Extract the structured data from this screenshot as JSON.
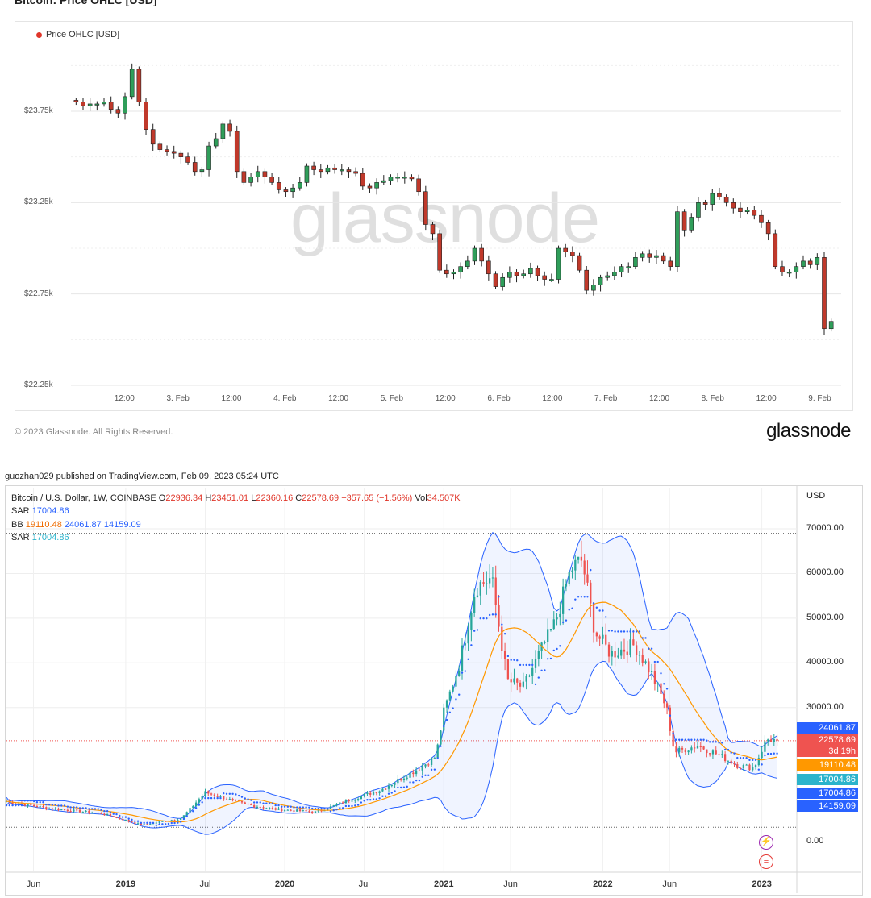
{
  "header": {
    "title": "Bitcoin: Price OHLC [USD]"
  },
  "glassnode": {
    "legend": "Price OHLC [USD]",
    "watermark": "glassnode",
    "copyright": "© 2023 Glassnode. All Rights Reserved.",
    "logo": "glassnode",
    "colors": {
      "up": "#2f9e5a",
      "down": "#c0392b",
      "legend_dot": "#e0362a"
    }
  },
  "tradingview": {
    "published": "guozhan029 published on TradingView.com, Feb 09, 2023 05:24 UTC",
    "symbol": "Bitcoin / U.S. Dollar, 1W, COINBASE",
    "o_label": "O",
    "o_value": "22936.34",
    "h_label": "H",
    "h_value": "23451.01",
    "l_label": "L",
    "l_value": "22360.16",
    "c_label": "C",
    "c_value": "22578.69",
    "change": "−357.65 (−1.56%)",
    "vol_label": "Vol",
    "vol_value": "34.507K",
    "sar1_label": "SAR",
    "sar1_value": "17004.86",
    "bb_label": "BB",
    "bb_mid": "19110.48",
    "bb_upper": "24061.87",
    "bb_lower": "14159.09",
    "sar2_label": "SAR",
    "sar2_value": "17004.86",
    "currency": "USD",
    "price_boxes": [
      "24061.87",
      "22578.69",
      "3d 19h",
      "19110.48",
      "17004.86",
      "17004.86",
      "14159.09"
    ],
    "icons": [
      "lightning-icon",
      "us-flag-icon"
    ],
    "colors": {
      "up": "#26a69a",
      "down": "#ef5350",
      "bb": "#2962ff",
      "basis": "#ff9800",
      "sar": "#2962ff"
    }
  },
  "chart_data": [
    {
      "type": "candlestick",
      "title": "Bitcoin: Price OHLC [USD]",
      "ylabel": "",
      "y_ticks": [
        "$22.25k",
        "$22.75k",
        "$23.25k",
        "$23.75k"
      ],
      "y_tick_values": [
        22250,
        22750,
        23250,
        23750
      ],
      "ylim": [
        22250,
        24050
      ],
      "x_ticks": [
        "12:00",
        "3. Feb",
        "12:00",
        "4. Feb",
        "12:00",
        "5. Feb",
        "12:00",
        "6. Feb",
        "12:00",
        "7. Feb",
        "12:00",
        "8. Feb",
        "12:00",
        "9. Feb"
      ],
      "x_tick_values": [
        0.5,
        1,
        1.5,
        2,
        2.5,
        3,
        3.5,
        4,
        4.5,
        5,
        5.5,
        6,
        6.5,
        7
      ],
      "xlim": [
        0.0,
        7.2
      ],
      "series_close": [
        23800,
        23780,
        23790,
        23790,
        23800,
        23760,
        23740,
        23830,
        23980,
        23800,
        23650,
        23570,
        23540,
        23530,
        23520,
        23500,
        23470,
        23420,
        23430,
        23560,
        23600,
        23680,
        23640,
        23420,
        23360,
        23390,
        23420,
        23390,
        23360,
        23320,
        23310,
        23330,
        23360,
        23450,
        23430,
        23420,
        23440,
        23430,
        23430,
        23420,
        23410,
        23340,
        23330,
        23360,
        23370,
        23390,
        23390,
        23390,
        23380,
        23310,
        23130,
        23080,
        22880,
        22860,
        22870,
        22900,
        22930,
        23000,
        22930,
        22860,
        22790,
        22840,
        22870,
        22850,
        22860,
        22890,
        22850,
        22830,
        22830,
        23000,
        22980,
        22960,
        22880,
        22770,
        22800,
        22840,
        22850,
        22870,
        22900,
        22900,
        22950,
        22970,
        22950,
        22960,
        22930,
        22900,
        23200,
        23100,
        23170,
        23250,
        23240,
        23300,
        23280,
        23250,
        23220,
        23200,
        23210,
        23180,
        23140,
        23080,
        22900,
        22870,
        22870,
        22900,
        22930,
        22910,
        22950,
        22560,
        22600
      ]
    },
    {
      "type": "candlestick",
      "title": "Bitcoin / U.S. Dollar, 1W, COINBASE",
      "ylabel": "USD",
      "y_ticks": [
        "0.00",
        "30000.00",
        "40000.00",
        "50000.00",
        "60000.00",
        "70000.00"
      ],
      "y_tick_values": [
        0,
        30000,
        40000,
        50000,
        60000,
        70000
      ],
      "ylim": [
        -6500,
        76500
      ],
      "x_ticks": [
        "Jun",
        "2019",
        "Jul",
        "2020",
        "Jul",
        "2021",
        "Jun",
        "2022",
        "Jun",
        "2023"
      ],
      "x_tick_values": [
        2018.42,
        2019.0,
        2019.5,
        2020.0,
        2020.5,
        2021.0,
        2021.42,
        2022.0,
        2022.42,
        2023.0
      ],
      "xlim": [
        2018.25,
        2023.22
      ],
      "anchors_date": [
        2018.25,
        2018.5,
        2018.85,
        2019.1,
        2019.35,
        2019.5,
        2019.75,
        2019.95,
        2020.2,
        2020.4,
        2020.6,
        2020.85,
        2020.95,
        2021.0,
        2021.1,
        2021.2,
        2021.3,
        2021.4,
        2021.5,
        2021.6,
        2021.7,
        2021.8,
        2021.87,
        2021.95,
        2022.05,
        2022.2,
        2022.3,
        2022.4,
        2022.45,
        2022.6,
        2022.75,
        2022.85,
        2022.95,
        2023.03,
        2023.1
      ],
      "anchors_close": [
        9000,
        7500,
        6300,
        3700,
        5200,
        11000,
        8300,
        7200,
        6600,
        9200,
        11500,
        16500,
        19000,
        29000,
        40000,
        57000,
        59000,
        36000,
        34500,
        42000,
        49000,
        61000,
        63000,
        47000,
        42000,
        44000,
        38000,
        30000,
        20000,
        21500,
        19000,
        17000,
        16500,
        22900,
        22580
      ],
      "price_labels": [
        "24061.87",
        "22578.69",
        "19110.48",
        "17004.86",
        "14159.09"
      ],
      "last_close": 22578.69,
      "bb_upper": 24061.87,
      "bb_mid": 19110.48,
      "bb_lower": 14159.09,
      "sar": 17004.86
    }
  ]
}
